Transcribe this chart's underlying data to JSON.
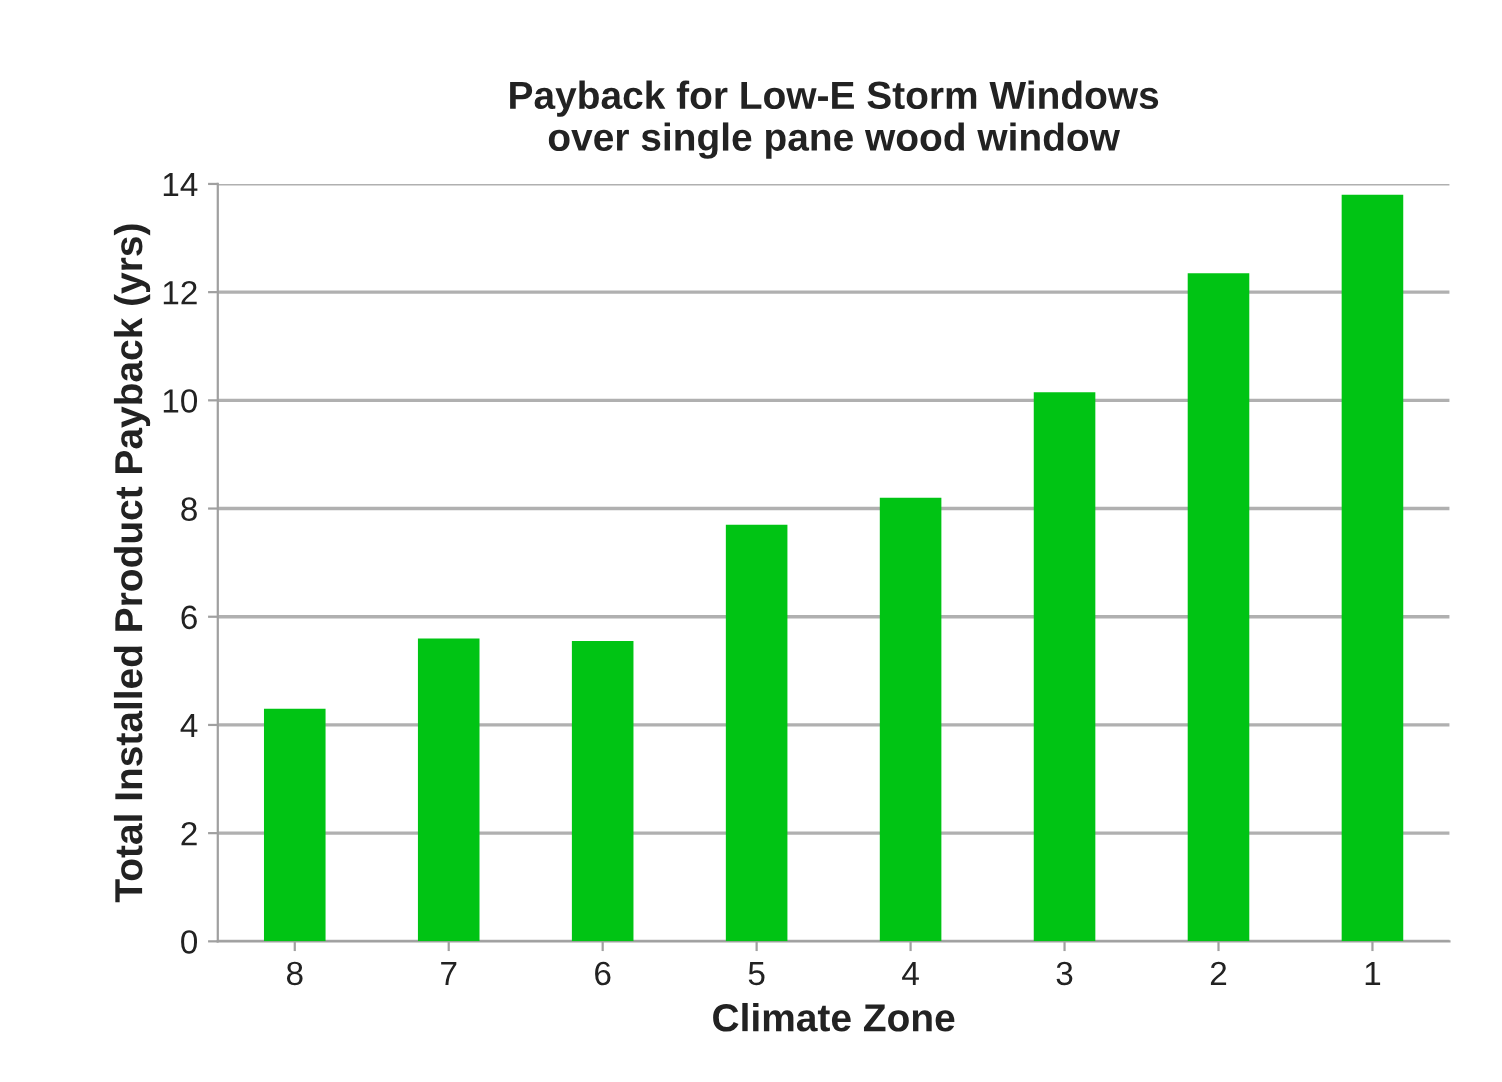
{
  "chart_data": {
    "type": "bar",
    "title": "Payback for Low-E Storm Windows\nover single pane wood window",
    "xlabel": "Climate Zone",
    "ylabel": "Total Installed Product Payback (yrs)",
    "categories": [
      "8",
      "7",
      "6",
      "5",
      "4",
      "3",
      "2",
      "1"
    ],
    "values": [
      4.3,
      5.6,
      5.55,
      7.7,
      8.2,
      10.15,
      12.35,
      13.8
    ],
    "color": "#00c414",
    "ylim": [
      0,
      14
    ],
    "yticks": [
      0,
      2,
      4,
      6,
      8,
      10,
      12,
      14
    ],
    "grid": "y"
  }
}
